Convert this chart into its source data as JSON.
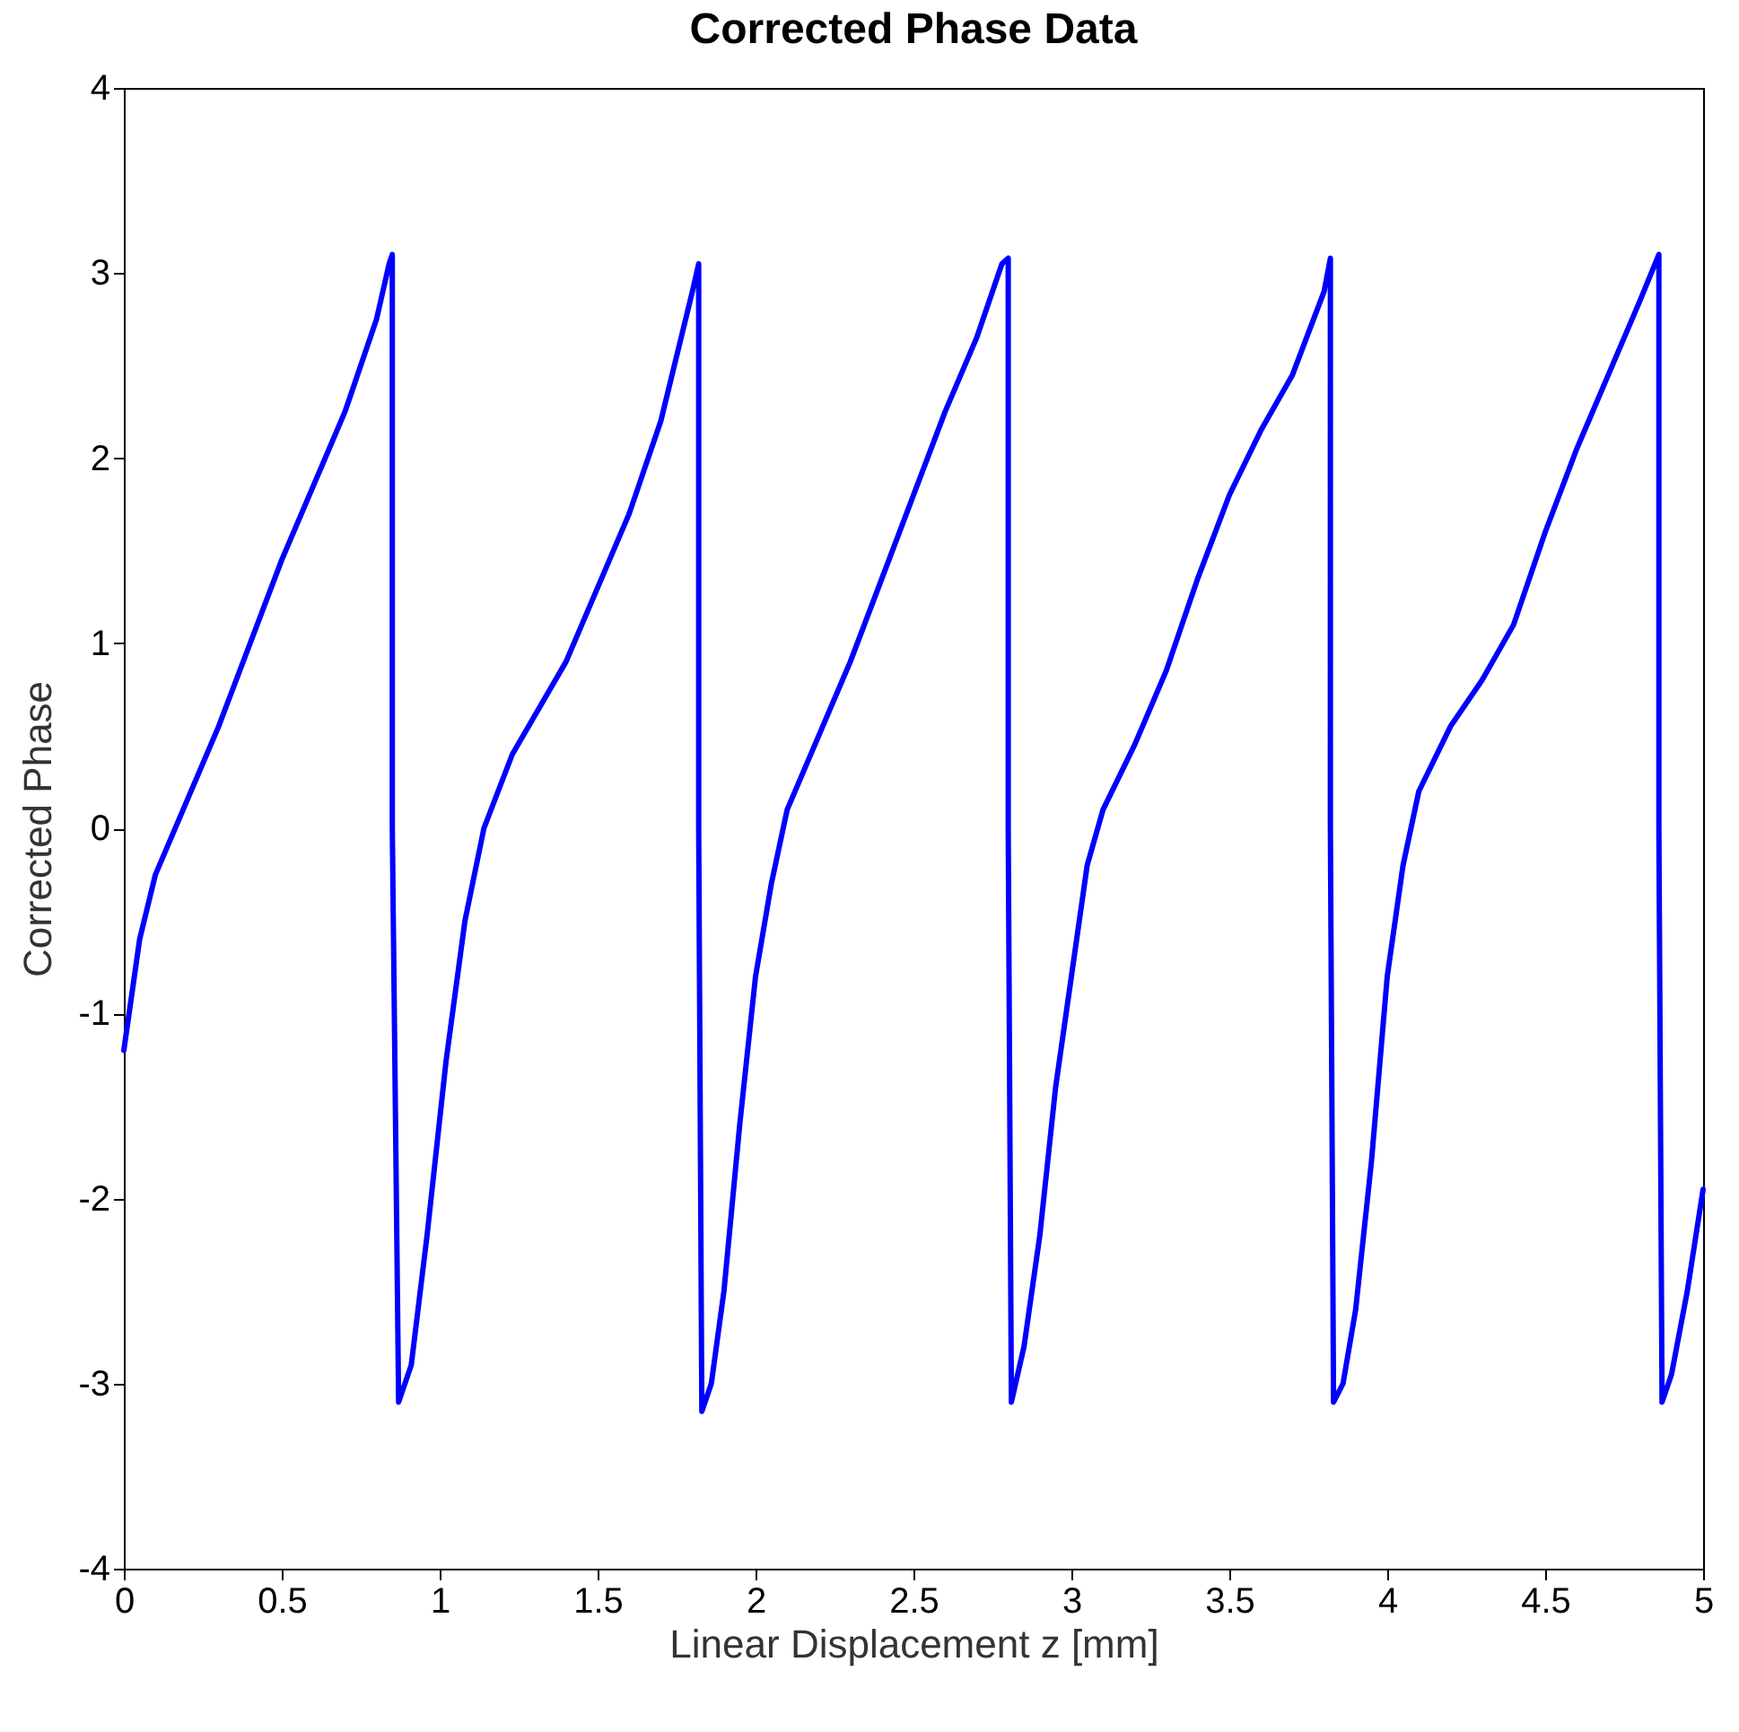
{
  "chart_data": {
    "type": "line",
    "title": "Corrected Phase Data",
    "xlabel": "Linear Displacement z [mm]",
    "ylabel": "Corrected Phase",
    "x": [
      0,
      0.05,
      0.1,
      0.15,
      0.2,
      0.3,
      0.4,
      0.5,
      0.6,
      0.7,
      0.8,
      0.84,
      0.85,
      0.85,
      0.87,
      0.91,
      0.96,
      1.02,
      1.08,
      1.14,
      1.23,
      1.4,
      1.6,
      1.7,
      1.8,
      1.82,
      1.82,
      1.83,
      1.86,
      1.9,
      1.95,
      2.0,
      2.05,
      2.1,
      2.2,
      2.3,
      2.4,
      2.5,
      2.6,
      2.7,
      2.78,
      2.8,
      2.8,
      2.81,
      2.85,
      2.9,
      2.95,
      3.0,
      3.05,
      3.1,
      3.2,
      3.3,
      3.4,
      3.5,
      3.6,
      3.7,
      3.8,
      3.82,
      3.82,
      3.83,
      3.86,
      3.9,
      3.95,
      4.0,
      4.05,
      4.1,
      4.2,
      4.3,
      4.4,
      4.5,
      4.6,
      4.7,
      4.8,
      4.86,
      4.86,
      4.87,
      4.9,
      4.95,
      5.0
    ],
    "series": [
      {
        "color": "#0000ff",
        "values": [
          -1.2,
          -0.6,
          -0.25,
          -0.05,
          0.15,
          0.55,
          1.0,
          1.45,
          1.85,
          2.25,
          2.75,
          3.05,
          3.1,
          0,
          -3.1,
          -2.9,
          -2.2,
          -1.26,
          -0.5,
          0,
          0.4,
          0.9,
          1.7,
          2.2,
          2.9,
          3.05,
          0,
          -3.15,
          -3.0,
          -2.5,
          -1.6,
          -0.8,
          -0.3,
          0.1,
          0.5,
          0.9,
          1.35,
          1.8,
          2.25,
          2.65,
          3.05,
          3.08,
          0,
          -3.1,
          -2.8,
          -2.2,
          -1.4,
          -0.8,
          -0.2,
          0.1,
          0.45,
          0.85,
          1.35,
          1.8,
          2.15,
          2.45,
          2.9,
          3.08,
          0,
          -3.1,
          -3.0,
          -2.6,
          -1.8,
          -0.8,
          -0.2,
          0.2,
          0.55,
          0.8,
          1.1,
          1.6,
          2.05,
          2.45,
          2.85,
          3.1,
          0,
          -3.1,
          -2.95,
          -2.5,
          -1.95
        ]
      }
    ],
    "xlim": [
      0,
      5
    ],
    "xticks": [
      0,
      0.5,
      1,
      1.5,
      2,
      2.5,
      3,
      3.5,
      4,
      4.5,
      5
    ],
    "ylim": [
      -4,
      4
    ],
    "yticks": [
      -4,
      -3,
      -2,
      -1,
      0,
      1,
      2,
      3,
      4
    ],
    "grid": false,
    "marker": "none",
    "line_style": "solid"
  }
}
